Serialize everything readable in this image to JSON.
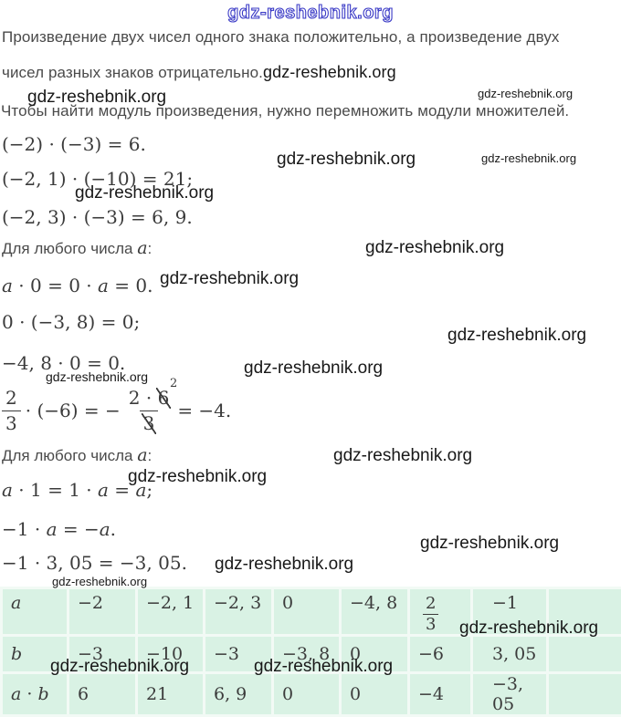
{
  "watermark": "gdz-reshebnik.org",
  "intro": {
    "line1": "Произведение двух чисел одного знака положительно, а произведение двух",
    "line2": "чисел разных знаков отрицательно.",
    "line3": "Чтобы найти модуль произведения, нужно перемножить модули множителей."
  },
  "formulas": {
    "f1": "(−2) · (−3) = 6.",
    "f2": "(−2, 1) · (−10) = 21;",
    "f3": "(−2, 3) · (−3) = 6, 9.",
    "any_number_zero": "Для любого числа *a*:",
    "f4": "*a* · 0 = 0 · *a* = 0.",
    "f5": "0 · (−3, 8) = 0;",
    "f6": "−4, 8 · 0 = 0.",
    "cancel": {
      "left_num": "2",
      "left_den": "3",
      "middle": "· (−6) = −",
      "num_pre": "2 · ",
      "num_cancel": "6",
      "num_sup": "2",
      "den_cancel": "3",
      "tail": "= −4."
    },
    "any_number_one": "Для любого числа *a*:",
    "f7": "*a* · 1 = 1 · *a* = *a*;",
    "f8": "−1 · *a* = −*a*.",
    "f9": "−1 · 3, 05 = −3, 05."
  },
  "table": {
    "fraction": {
      "num": "2",
      "den": "3"
    },
    "rows": [
      {
        "label": "*a*",
        "cells": [
          "−2",
          "−2, 1",
          "−2, 3",
          "0",
          "−4, 8",
          "",
          "−1",
          ""
        ]
      },
      {
        "label": "*b*",
        "cells": [
          "−3",
          "−10",
          "−3",
          "−3, 8",
          "0",
          "−6",
          "3, 05",
          ""
        ]
      },
      {
        "label": "*a* · *b*",
        "cells": [
          "6",
          "21",
          "6, 9",
          "0",
          "0",
          "−4",
          "−3, 05",
          ""
        ]
      }
    ]
  },
  "colors": {
    "table_bg": "#d9f2e4",
    "table_border": "#f2faf5",
    "watermark_outline_blue": "#3a3ac6",
    "text_gray": "#4a4a4a",
    "math_ink": "#3b3b3b"
  }
}
